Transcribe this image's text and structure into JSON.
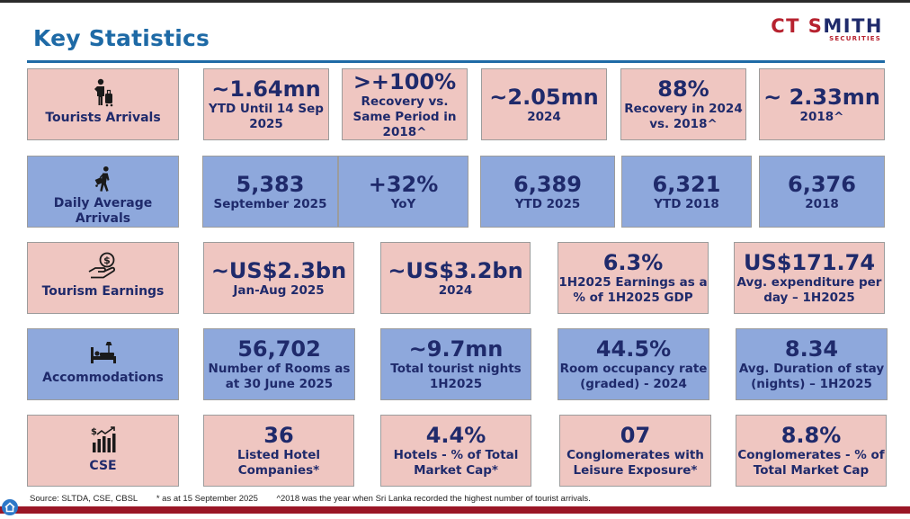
{
  "title": "Key Statistics",
  "logo": {
    "main_a": "CT S",
    "main_b": "MITH",
    "sub": "SECURITIES"
  },
  "rows": {
    "tourists": {
      "label": "Tourists Arrivals",
      "stats": [
        {
          "big": "~1.64mn",
          "sub": "YTD Until 14 Sep 2025"
        },
        {
          "big": ">+100%",
          "sub": "Recovery vs. Same Period in 2018^"
        },
        {
          "big": "~2.05mn",
          "sub": "2024"
        },
        {
          "big": "88%",
          "sub": "Recovery in 2024 vs. 2018^"
        },
        {
          "big": "~ 2.33mn",
          "sub": "2018^"
        }
      ]
    },
    "daily": {
      "label": "Daily Average Arrivals",
      "stats": [
        {
          "big": "5,383",
          "sub": "September 2025"
        },
        {
          "big": "+32%",
          "sub": "YoY"
        },
        {
          "big": "6,389",
          "sub": "YTD 2025"
        },
        {
          "big": "6,321",
          "sub": "YTD 2018"
        },
        {
          "big": "6,376",
          "sub": "2018"
        }
      ]
    },
    "earnings": {
      "label": "Tourism Earnings",
      "stats": [
        {
          "big": "~US$2.3bn",
          "sub": "Jan-Aug 2025"
        },
        {
          "big": "~US$3.2bn",
          "sub": "2024"
        },
        {
          "big": "6.3%",
          "sub": "1H2025 Earnings as a % of 1H2025 GDP"
        },
        {
          "big": "US$171.74",
          "sub": "Avg. expenditure per day – 1H2025"
        }
      ]
    },
    "accom": {
      "label": "Accommodations",
      "stats": [
        {
          "big": "56,702",
          "sub": "Number of Rooms as at 30 June 2025"
        },
        {
          "big": "~9.7mn",
          "sub": "Total tourist nights 1H2025"
        },
        {
          "big": "44.5%",
          "sub": "Room occupancy rate (graded) - 2024"
        },
        {
          "big": "8.34",
          "sub": "Avg. Duration of stay (nights) – 1H2025"
        }
      ]
    },
    "cse": {
      "label": "CSE",
      "stats": [
        {
          "big": "36",
          "sub": "Listed Hotel Companies*"
        },
        {
          "big": "4.4%",
          "sub": "Hotels - % of Total Market Cap*"
        },
        {
          "big": "07",
          "sub": "Conglomerates with Leisure Exposure*"
        },
        {
          "big": "8.8%",
          "sub": "Conglomerates - % of Total Market Cap"
        }
      ]
    }
  },
  "footer": {
    "source": "Source: SLTDA, CSE, CBSL",
    "note1": "* as at 15 September 2025",
    "note2": "^2018 was the year when Sri Lanka recorded the highest number of tourist arrivals."
  },
  "icons": {
    "tourists": "traveler-luggage-icon",
    "daily": "walking-traveler-icon",
    "earnings": "money-hand-icon",
    "accom": "bed-icon",
    "cse": "bar-chart-icon"
  },
  "colors": {
    "pink": "#efc6c1",
    "blue": "#8ea8dc",
    "navy": "#1f2a6b",
    "accent": "#1e6aa6",
    "brand_red": "#b7222f"
  }
}
